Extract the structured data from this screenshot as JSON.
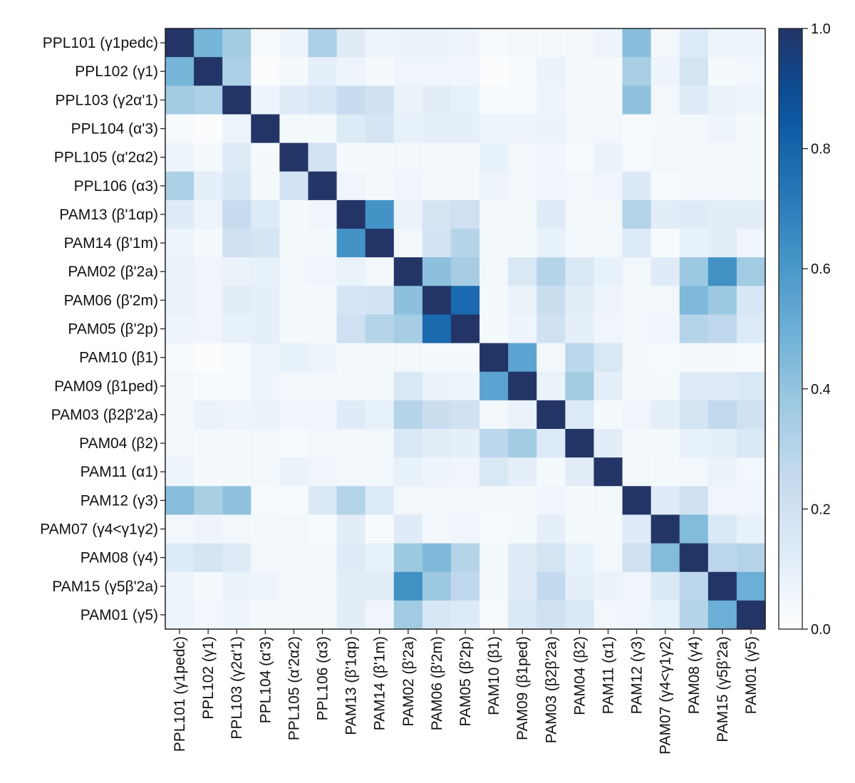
{
  "chart_data": {
    "type": "heatmap",
    "rows": [
      "PPL101 (γ1pedc)",
      "PPL102 (γ1)",
      "PPL103 (γ2α'1)",
      "PPL104 (α'3)",
      "PPL105 (α'2α2)",
      "PPL106 (α3)",
      "PAM13 (β'1αp)",
      "PAM14 (β'1m)",
      "PAM02 (β'2a)",
      "PAM06 (β'2m)",
      "PAM05 (β'2p)",
      "PAM10 (β1)",
      "PAM09 (β1ped)",
      "PAM03 (β2β'2a)",
      "PAM04 (β2)",
      "PAM11 (α1)",
      "PAM12 (γ3)",
      "PAM07 (γ4<γ1γ2)",
      "PAM08 (γ4)",
      "PAM15 (γ5β'2a)",
      "PAM01 (γ5)"
    ],
    "columns": [
      "PPL101 (γ1pedc)",
      "PPL102 (γ1)",
      "PPL103 (γ2α'1)",
      "PPL104 (α'3)",
      "PPL105 (α'2α2)",
      "PPL106 (α3)",
      "PAM13 (β'1αp)",
      "PAM14 (β'1m)",
      "PAM02 (β'2a)",
      "PAM06 (β'2m)",
      "PAM05 (β'2p)",
      "PAM10 (β1)",
      "PAM09 (β1ped)",
      "PAM03 (β2β'2a)",
      "PAM04 (β2)",
      "PAM11 (α1)",
      "PAM12 (γ3)",
      "PAM07 (γ4<γ1γ2)",
      "PAM08 (γ4)",
      "PAM15 (γ5β'2a)",
      "PAM01 (γ5)"
    ],
    "values": [
      [
        1.0,
        0.47,
        0.36,
        0.03,
        0.07,
        0.33,
        0.12,
        0.07,
        0.08,
        0.08,
        0.07,
        0.03,
        0.05,
        0.04,
        0.05,
        0.07,
        0.43,
        0.05,
        0.13,
        0.07,
        0.07
      ],
      [
        0.47,
        1.0,
        0.33,
        0.02,
        0.04,
        0.1,
        0.07,
        0.04,
        0.06,
        0.06,
        0.06,
        0.02,
        0.03,
        0.08,
        0.04,
        0.04,
        0.34,
        0.07,
        0.18,
        0.04,
        0.05
      ],
      [
        0.36,
        0.33,
        1.0,
        0.07,
        0.12,
        0.16,
        0.24,
        0.2,
        0.08,
        0.11,
        0.09,
        0.03,
        0.03,
        0.07,
        0.04,
        0.04,
        0.41,
        0.05,
        0.12,
        0.08,
        0.07
      ],
      [
        0.03,
        0.02,
        0.07,
        1.0,
        0.04,
        0.04,
        0.13,
        0.17,
        0.09,
        0.1,
        0.1,
        0.07,
        0.07,
        0.08,
        0.05,
        0.05,
        0.03,
        0.04,
        0.05,
        0.07,
        0.04
      ],
      [
        0.07,
        0.04,
        0.12,
        0.04,
        1.0,
        0.19,
        0.04,
        0.04,
        0.05,
        0.04,
        0.04,
        0.09,
        0.05,
        0.06,
        0.03,
        0.08,
        0.03,
        0.05,
        0.05,
        0.04,
        0.04
      ],
      [
        0.33,
        0.1,
        0.16,
        0.04,
        0.19,
        1.0,
        0.06,
        0.04,
        0.06,
        0.04,
        0.04,
        0.07,
        0.05,
        0.06,
        0.05,
        0.06,
        0.14,
        0.03,
        0.05,
        0.05,
        0.04
      ],
      [
        0.12,
        0.07,
        0.24,
        0.13,
        0.04,
        0.06,
        1.0,
        0.62,
        0.08,
        0.17,
        0.21,
        0.04,
        0.04,
        0.12,
        0.05,
        0.05,
        0.31,
        0.11,
        0.12,
        0.11,
        0.11
      ],
      [
        0.07,
        0.04,
        0.2,
        0.17,
        0.04,
        0.04,
        0.62,
        1.0,
        0.05,
        0.19,
        0.3,
        0.04,
        0.04,
        0.09,
        0.05,
        0.05,
        0.13,
        0.03,
        0.09,
        0.11,
        0.06
      ],
      [
        0.08,
        0.06,
        0.08,
        0.09,
        0.05,
        0.06,
        0.08,
        0.05,
        1.0,
        0.42,
        0.35,
        0.05,
        0.15,
        0.3,
        0.15,
        0.09,
        0.05,
        0.12,
        0.38,
        0.63,
        0.37
      ],
      [
        0.08,
        0.06,
        0.11,
        0.1,
        0.04,
        0.04,
        0.17,
        0.19,
        0.42,
        1.0,
        0.78,
        0.04,
        0.08,
        0.23,
        0.11,
        0.07,
        0.05,
        0.05,
        0.45,
        0.38,
        0.16
      ],
      [
        0.07,
        0.06,
        0.09,
        0.1,
        0.04,
        0.04,
        0.21,
        0.3,
        0.35,
        0.78,
        1.0,
        0.04,
        0.07,
        0.2,
        0.1,
        0.06,
        0.05,
        0.06,
        0.3,
        0.27,
        0.13
      ],
      [
        0.03,
        0.02,
        0.03,
        0.07,
        0.09,
        0.07,
        0.04,
        0.04,
        0.05,
        0.04,
        0.04,
        1.0,
        0.55,
        0.05,
        0.28,
        0.15,
        0.04,
        0.03,
        0.04,
        0.04,
        0.03
      ],
      [
        0.05,
        0.03,
        0.03,
        0.07,
        0.05,
        0.05,
        0.04,
        0.04,
        0.15,
        0.08,
        0.07,
        0.55,
        1.0,
        0.08,
        0.36,
        0.1,
        0.04,
        0.04,
        0.12,
        0.12,
        0.15
      ],
      [
        0.04,
        0.08,
        0.07,
        0.08,
        0.06,
        0.06,
        0.12,
        0.09,
        0.3,
        0.23,
        0.2,
        0.05,
        0.08,
        1.0,
        0.13,
        0.04,
        0.06,
        0.1,
        0.18,
        0.26,
        0.2
      ],
      [
        0.05,
        0.04,
        0.04,
        0.05,
        0.03,
        0.05,
        0.05,
        0.05,
        0.15,
        0.11,
        0.1,
        0.28,
        0.36,
        0.13,
        1.0,
        0.11,
        0.04,
        0.04,
        0.09,
        0.1,
        0.15
      ],
      [
        0.07,
        0.04,
        0.04,
        0.05,
        0.08,
        0.06,
        0.05,
        0.05,
        0.09,
        0.07,
        0.06,
        0.15,
        0.1,
        0.04,
        0.11,
        1.0,
        0.05,
        0.04,
        0.05,
        0.08,
        0.05
      ],
      [
        0.43,
        0.34,
        0.41,
        0.03,
        0.03,
        0.14,
        0.31,
        0.13,
        0.05,
        0.05,
        0.05,
        0.04,
        0.04,
        0.06,
        0.04,
        0.05,
        1.0,
        0.12,
        0.2,
        0.06,
        0.06
      ],
      [
        0.05,
        0.07,
        0.05,
        0.04,
        0.05,
        0.03,
        0.11,
        0.03,
        0.12,
        0.05,
        0.06,
        0.03,
        0.04,
        0.1,
        0.04,
        0.04,
        0.12,
        1.0,
        0.44,
        0.14,
        0.09
      ],
      [
        0.13,
        0.18,
        0.12,
        0.05,
        0.05,
        0.05,
        0.12,
        0.09,
        0.38,
        0.45,
        0.3,
        0.04,
        0.12,
        0.18,
        0.09,
        0.05,
        0.2,
        0.44,
        1.0,
        0.28,
        0.3
      ],
      [
        0.07,
        0.04,
        0.08,
        0.07,
        0.04,
        0.05,
        0.11,
        0.11,
        0.63,
        0.38,
        0.27,
        0.04,
        0.12,
        0.26,
        0.1,
        0.08,
        0.06,
        0.14,
        0.28,
        1.0,
        0.5
      ],
      [
        0.07,
        0.05,
        0.07,
        0.04,
        0.04,
        0.04,
        0.11,
        0.06,
        0.37,
        0.16,
        0.13,
        0.03,
        0.15,
        0.2,
        0.15,
        0.05,
        0.06,
        0.09,
        0.3,
        0.5,
        1.0
      ]
    ],
    "colorbar": {
      "min": 0.0,
      "max": 1.0,
      "ticks": [
        "0.0",
        "0.2",
        "0.4",
        "0.6",
        "0.8",
        "1.0"
      ]
    },
    "colormap": [
      "#ffffff",
      "#deebf7",
      "#c6dbef",
      "#9ecae1",
      "#6baed6",
      "#4292c6",
      "#2171b5",
      "#08519c",
      "#233567"
    ],
    "title": "",
    "xlabel": "",
    "ylabel": ""
  }
}
